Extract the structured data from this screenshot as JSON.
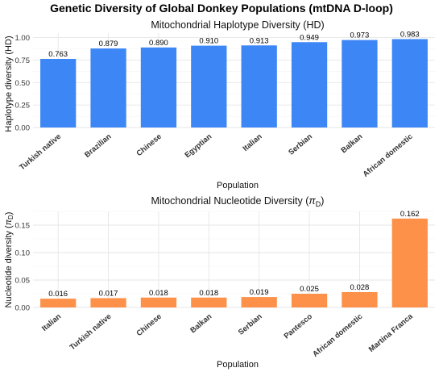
{
  "figure_title": "Genetic Diversity of Global Donkey Populations (mtDNA D-loop)",
  "chart_data": [
    {
      "type": "bar",
      "title": "Mitochondrial Haplotype Diversity (HD)",
      "xlabel": "Population",
      "ylabel": "Haplotype diversity (HD)",
      "categories": [
        "Turkish native",
        "Brazilian",
        "Chinese",
        "Egyptian",
        "Italian",
        "Serbian",
        "Balkan",
        "African domestic"
      ],
      "values": [
        0.763,
        0.879,
        0.89,
        0.91,
        0.913,
        0.949,
        0.973,
        0.983
      ],
      "value_labels": [
        "0.763",
        "0.879",
        "0.890",
        "0.910",
        "0.913",
        "0.949",
        "0.973",
        "0.983"
      ],
      "ylim": [
        0,
        1.05
      ],
      "yticks": [
        0,
        0.25,
        0.5,
        0.75,
        1.0
      ],
      "ytick_labels": [
        "0.00",
        "0.25",
        "0.50",
        "0.75",
        "1.00"
      ],
      "color": "#3d86f5",
      "grid": true
    },
    {
      "type": "bar",
      "title_main": "Mitochondrial Nucleotide Diversity (",
      "title_symbol": "π",
      "title_sub": "D",
      "title_end": ")",
      "xlabel": "Population",
      "ylabel_main": "Nucleotide diversity (",
      "ylabel_symbol": "π",
      "ylabel_sub": "D",
      "ylabel_end": ")",
      "categories": [
        "Italian",
        "Turkish native",
        "Chinese",
        "Balkan",
        "Serbian",
        "Pantesco",
        "African domestic",
        "Martina Franca"
      ],
      "values": [
        0.016,
        0.017,
        0.018,
        0.018,
        0.019,
        0.025,
        0.028,
        0.162
      ],
      "value_labels": [
        "0.016",
        "0.017",
        "0.018",
        "0.018",
        "0.019",
        "0.025",
        "0.028",
        "0.162"
      ],
      "ylim": [
        0,
        0.175
      ],
      "yticks": [
        0,
        0.05,
        0.1,
        0.15
      ],
      "ytick_labels": [
        "0.00",
        "0.05",
        "0.10",
        "0.15"
      ],
      "color": "#fe914a",
      "grid": true
    }
  ]
}
